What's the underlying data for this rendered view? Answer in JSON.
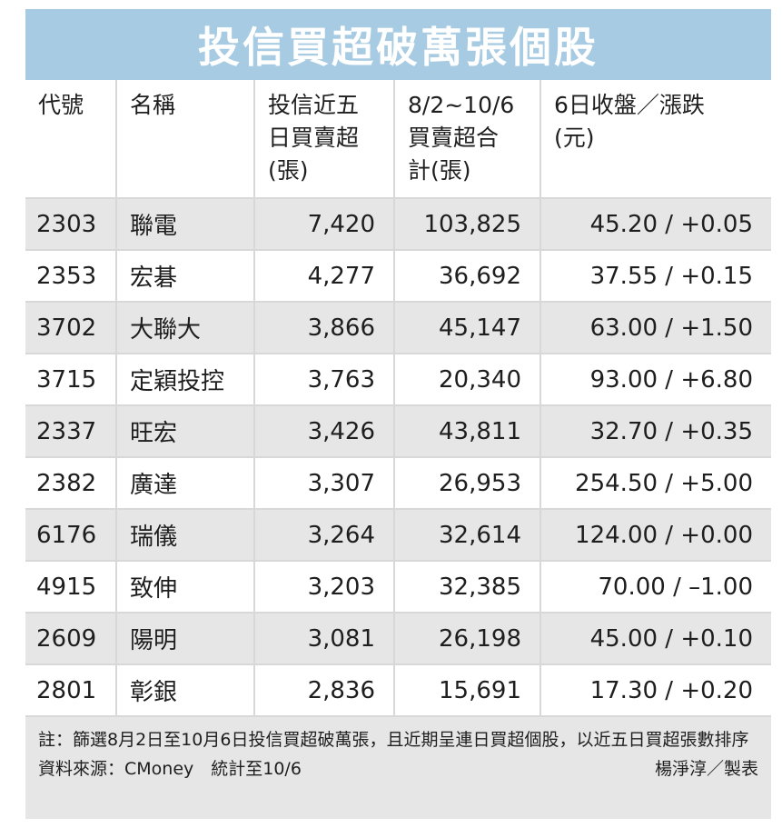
{
  "title": "投信買超破萬張個股",
  "headers": {
    "code": "代號",
    "name": "名稱",
    "net5": "投信近五\n日買賣超\n(張)",
    "total": "8/2~10/6\n買賣超合\n計(張)",
    "close": "6日收盤／漲跌\n(元)"
  },
  "rows": [
    {
      "code": "2303",
      "name": "聯電",
      "net5": "7,420",
      "total": "103,825",
      "close": "45.20 / +0.05"
    },
    {
      "code": "2353",
      "name": "宏碁",
      "net5": "4,277",
      "total": "36,692",
      "close": "37.55 / +0.15"
    },
    {
      "code": "3702",
      "name": "大聯大",
      "net5": "3,866",
      "total": "45,147",
      "close": "63.00 / +1.50"
    },
    {
      "code": "3715",
      "name": "定穎投控",
      "net5": "3,763",
      "total": "20,340",
      "close": "93.00 / +6.80"
    },
    {
      "code": "2337",
      "name": "旺宏",
      "net5": "3,426",
      "total": "43,811",
      "close": "32.70 / +0.35"
    },
    {
      "code": "2382",
      "name": "廣達",
      "net5": "3,307",
      "total": "26,953",
      "close": "254.50 / +5.00"
    },
    {
      "code": "6176",
      "name": "瑞儀",
      "net5": "3,264",
      "total": "32,614",
      "close": "124.00 / +0.00"
    },
    {
      "code": "4915",
      "name": "致伸",
      "net5": "3,203",
      "total": "32,385",
      "close": "70.00 / –1.00"
    },
    {
      "code": "2609",
      "name": "陽明",
      "net5": "3,081",
      "total": "26,198",
      "close": "45.00 / +0.10"
    },
    {
      "code": "2801",
      "name": "彰銀",
      "net5": "2,836",
      "total": "15,691",
      "close": "17.30 / +0.20"
    }
  ],
  "footer": {
    "note": "註：篩選8月2日至10月6日投信買超破萬張，且近期呈連日買超個股，以近五日買超張數排序",
    "source": "資料來源：CMoney　統計至10/6",
    "credit": "楊淨淳／製表"
  }
}
